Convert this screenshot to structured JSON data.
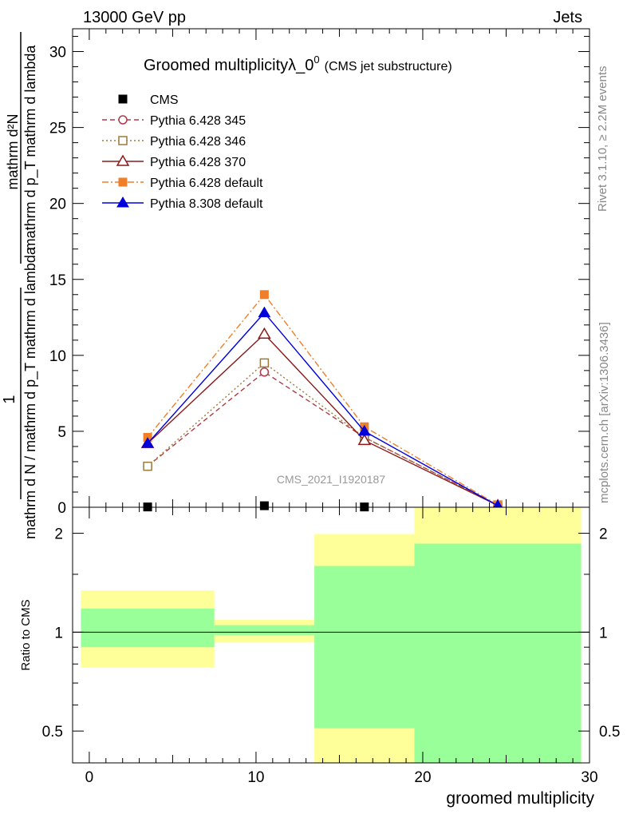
{
  "header": {
    "left": "13000 GeV pp",
    "right": "Jets"
  },
  "side_labels": {
    "rivet": "Rivet 3.1.10, ≥ 2.2M events",
    "mcplots": "mcplots.cern.ch [arXiv:1306.3436]"
  },
  "watermark": "CMS_2021_I1920187",
  "chart_data": [
    {
      "type": "line",
      "title": "Groomed multiplicityλ_0",
      "title_sup": "0",
      "subtitle": "(CMS jet substructure)",
      "ylabel_numerator": "1",
      "ylabel_denominator": "mathrm d N / mathrm d p_T mathrm d lambda",
      "ylabel_numerator2": "mathrm d²N",
      "ylabel_denominator2": "mathrm d p_T mathrm d lambda",
      "xlim": [
        -1,
        30
      ],
      "ylim": [
        0,
        31.5
      ],
      "y_ticks": [
        0,
        5,
        10,
        15,
        20,
        25,
        30
      ],
      "legend_position": "top-left",
      "x": [
        3.5,
        10.5,
        16.5,
        24.5
      ],
      "series": [
        {
          "name": "CMS",
          "values": [
            0.02,
            0.1,
            0.02,
            0.02
          ],
          "color": "#000000",
          "marker": "square-filled",
          "dash": "none"
        },
        {
          "name": "Pythia 6.428 345",
          "values": [
            2.7,
            8.9,
            4.6,
            0.15
          ],
          "color": "#b03a48",
          "marker": "circle-open",
          "dash": "6,4"
        },
        {
          "name": "Pythia 6.428 346",
          "values": [
            2.7,
            9.5,
            4.6,
            0.15
          ],
          "color": "#9b7a3c",
          "marker": "square-open",
          "dash": "2,3"
        },
        {
          "name": "Pythia 6.428 370",
          "values": [
            4.2,
            11.4,
            4.4,
            0.12
          ],
          "color": "#8b1a1a",
          "marker": "triangle-open",
          "dash": "none"
        },
        {
          "name": "Pythia 6.428 default",
          "values": [
            4.6,
            14.0,
            5.3,
            0.15
          ],
          "color": "#f07f28",
          "marker": "square-filled",
          "dash": "8,3,2,3"
        },
        {
          "name": "Pythia 8.308 default",
          "values": [
            4.2,
            12.8,
            5.0,
            0.1
          ],
          "color": "#0000dd",
          "marker": "triangle-filled",
          "dash": "none"
        }
      ]
    },
    {
      "type": "area",
      "ylabel": "Ratio to CMS",
      "xlabel": "groomed multiplicity",
      "scale": "log",
      "ylim": [
        0.4,
        2.4
      ],
      "y_ticks": [
        0.5,
        1,
        2
      ],
      "x_ticks": [
        0,
        10,
        20,
        30
      ],
      "xlim": [
        -1,
        30
      ],
      "reference_line": 1,
      "bins": [
        {
          "x0": -0.5,
          "x1": 7.5,
          "yellow": [
            0.78,
            1.34
          ],
          "green": [
            0.9,
            1.18
          ]
        },
        {
          "x0": 7.5,
          "x1": 13.5,
          "yellow": [
            0.93,
            1.09
          ],
          "green": [
            0.98,
            1.05
          ]
        },
        {
          "x0": 13.5,
          "x1": 19.5,
          "yellow": [
            0.4,
            1.99
          ],
          "green": [
            0.51,
            1.59
          ]
        },
        {
          "x0": 19.5,
          "x1": 29.5,
          "yellow": [
            0.4,
            2.4
          ],
          "green": [
            0.4,
            1.86
          ]
        }
      ]
    }
  ]
}
